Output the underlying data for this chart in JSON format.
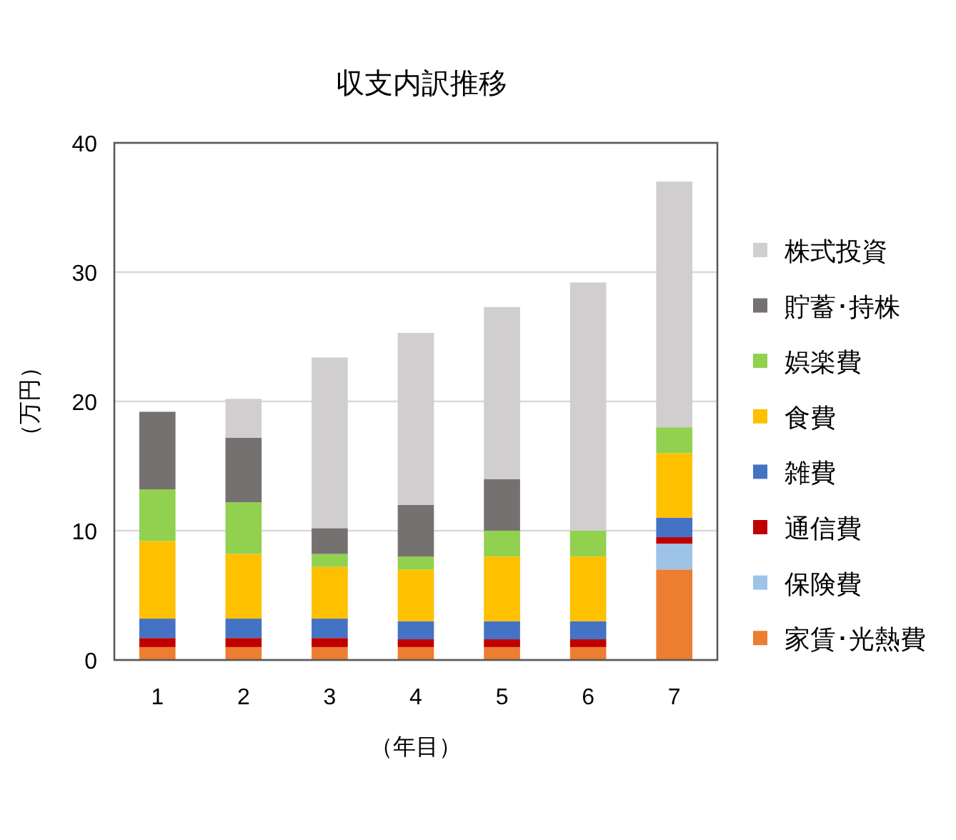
{
  "chart_data": {
    "type": "bar",
    "title": "収支内訳推移",
    "xlabel": "（年目）",
    "ylabel": "（万円）",
    "categories": [
      "1",
      "2",
      "3",
      "4",
      "5",
      "6",
      "7"
    ],
    "stacked": true,
    "ylim": [
      0,
      40
    ],
    "yticks": [
      0,
      10,
      20,
      30,
      40
    ],
    "grid": "y",
    "legend": "right",
    "series": [
      {
        "name": "家賃･光熱費",
        "color": "#ed7d31",
        "values": [
          1,
          1,
          1,
          1,
          1,
          1,
          7
        ]
      },
      {
        "name": "保険費",
        "color": "#9dc3e6",
        "values": [
          null,
          null,
          null,
          null,
          null,
          null,
          2
        ]
      },
      {
        "name": "通信費",
        "color": "#c00000",
        "values": [
          0.7,
          0.7,
          0.7,
          0.6,
          0.6,
          0.6,
          0.5
        ]
      },
      {
        "name": "雑費",
        "color": "#4472c4",
        "values": [
          1.5,
          1.5,
          1.5,
          1.4,
          1.4,
          1.4,
          1.5
        ]
      },
      {
        "name": "食費",
        "color": "#ffc000",
        "values": [
          6,
          5,
          4,
          4,
          5,
          5,
          5
        ]
      },
      {
        "name": "娯楽費",
        "color": "#92d050",
        "values": [
          4,
          4,
          1,
          1,
          2,
          2,
          2
        ]
      },
      {
        "name": "貯蓄･持株",
        "color": "#767171",
        "values": [
          6,
          5,
          2,
          4,
          4,
          null,
          null
        ]
      },
      {
        "name": "株式投資",
        "color": "#d0cece",
        "values": [
          null,
          3,
          13.2,
          13.3,
          13.3,
          19.2,
          19
        ]
      }
    ]
  }
}
